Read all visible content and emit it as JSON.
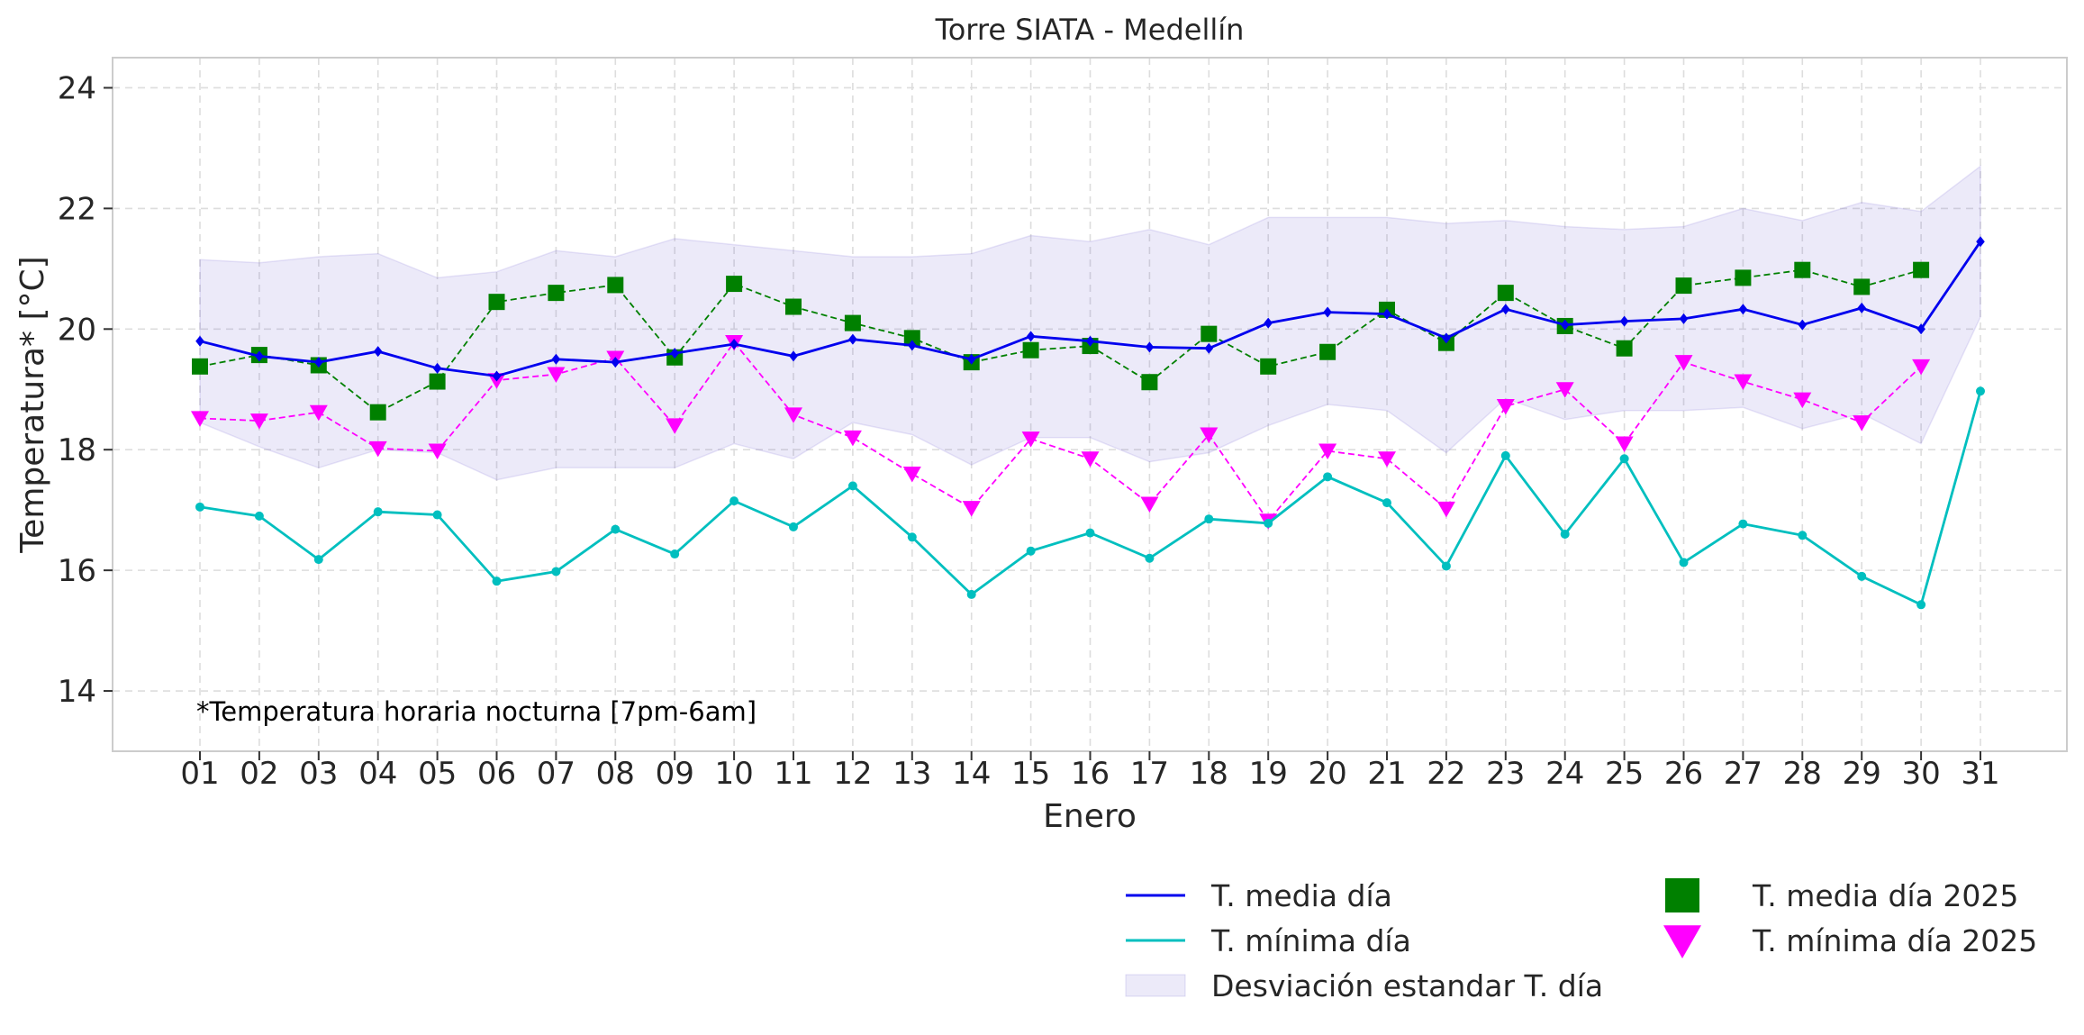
{
  "chart_data": {
    "type": "line",
    "title": "Torre SIATA - Medellín",
    "xlabel": "Enero",
    "ylabel": "Temperatura* [°C]",
    "annotation": "*Temperatura horaria nocturna [7pm-6am]",
    "ylim": [
      13,
      24.5
    ],
    "yticks": [
      14,
      16,
      18,
      20,
      22,
      24
    ],
    "grid": true,
    "legend_position": "bottom-right",
    "categories": [
      "01",
      "02",
      "03",
      "04",
      "05",
      "06",
      "07",
      "08",
      "09",
      "10",
      "11",
      "12",
      "13",
      "14",
      "15",
      "16",
      "17",
      "18",
      "19",
      "20",
      "21",
      "22",
      "23",
      "24",
      "25",
      "26",
      "27",
      "28",
      "29",
      "30",
      "31"
    ],
    "band": {
      "name": "Desviación estandar T. día",
      "color": "#6a5acd",
      "upper": [
        21.15,
        21.1,
        21.2,
        21.25,
        20.85,
        20.95,
        21.3,
        21.2,
        21.5,
        21.4,
        21.3,
        21.2,
        21.2,
        21.25,
        21.55,
        21.45,
        21.65,
        21.4,
        21.85,
        21.85,
        21.85,
        21.75,
        21.8,
        21.7,
        21.65,
        21.7,
        22.0,
        21.8,
        22.1,
        21.95,
        22.7
      ],
      "lower": [
        18.45,
        18.05,
        17.7,
        18.0,
        17.95,
        17.5,
        17.7,
        17.7,
        17.7,
        18.1,
        17.85,
        18.45,
        18.25,
        17.75,
        18.2,
        18.2,
        17.8,
        17.95,
        18.4,
        18.75,
        18.65,
        17.95,
        18.85,
        18.5,
        18.65,
        18.65,
        18.7,
        18.35,
        18.6,
        18.1,
        20.2
      ]
    },
    "series": [
      {
        "name": "T. media día",
        "color": "#0000ee",
        "style": "solid",
        "marker": "diamond",
        "values": [
          19.8,
          19.55,
          19.45,
          19.63,
          19.35,
          19.22,
          19.5,
          19.45,
          19.6,
          19.75,
          19.55,
          19.83,
          19.73,
          19.5,
          19.88,
          19.8,
          19.7,
          19.68,
          20.1,
          20.28,
          20.25,
          19.85,
          20.33,
          20.07,
          20.13,
          20.17,
          20.33,
          20.07,
          20.35,
          20.0,
          21.45
        ]
      },
      {
        "name": "T. mínima día",
        "color": "#00bfbf",
        "style": "solid",
        "marker": "circle",
        "values": [
          17.05,
          16.9,
          16.18,
          16.97,
          16.92,
          15.82,
          15.98,
          16.68,
          16.27,
          17.15,
          16.72,
          17.4,
          16.55,
          15.6,
          16.32,
          16.62,
          16.2,
          16.85,
          16.78,
          17.55,
          17.12,
          16.07,
          17.9,
          16.6,
          17.85,
          16.13,
          16.77,
          16.58,
          15.9,
          15.43,
          18.97
        ]
      },
      {
        "name": "T. media día 2025",
        "color": "#008000",
        "style": "dashed",
        "marker": "square",
        "values": [
          19.38,
          19.57,
          19.4,
          18.62,
          19.13,
          20.45,
          20.6,
          20.73,
          19.53,
          20.75,
          20.37,
          20.1,
          19.85,
          19.45,
          19.65,
          19.72,
          19.12,
          19.92,
          19.38,
          19.62,
          20.32,
          19.77,
          20.6,
          20.05,
          19.68,
          20.72,
          20.85,
          20.98,
          20.7,
          20.98,
          null
        ]
      },
      {
        "name": "T. mínima día 2025",
        "color": "#ff00ff",
        "style": "dashed",
        "marker": "triangle-down",
        "values": [
          18.52,
          18.48,
          18.62,
          18.02,
          17.98,
          19.15,
          19.25,
          19.52,
          18.4,
          19.78,
          18.58,
          18.2,
          17.6,
          17.03,
          18.18,
          17.85,
          17.1,
          18.25,
          16.82,
          17.98,
          17.85,
          17.02,
          18.72,
          19.0,
          18.1,
          19.45,
          19.13,
          18.83,
          18.45,
          19.38,
          null
        ]
      }
    ]
  }
}
